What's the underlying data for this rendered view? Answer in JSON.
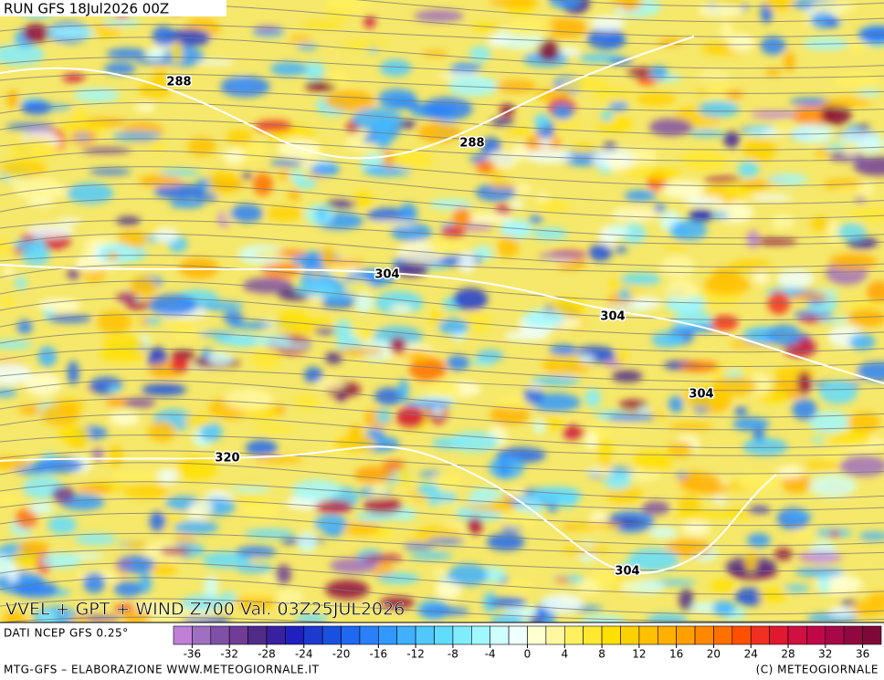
{
  "header": {
    "title": "RUN GFS 18Jul2026 00Z",
    "product": "VVEL + GPT + WIND Z700 Val. 03Z25JUL2026"
  },
  "map": {
    "contour_labels": [
      288,
      288,
      304,
      304,
      304,
      320,
      304
    ]
  },
  "legend": {
    "source": "DATI NCEP GFS 0.25°",
    "ticks": [
      -36,
      -32,
      -28,
      -24,
      -20,
      -16,
      -12,
      -8,
      -4,
      0,
      4,
      8,
      12,
      16,
      20,
      24,
      28,
      32,
      36
    ],
    "colors": [
      "#c080d8",
      "#a070c0",
      "#8050a8",
      "#703c98",
      "#502c88",
      "#3820a0",
      "#2020c0",
      "#1c3ad0",
      "#1a50e0",
      "#2068f0",
      "#2a80f8",
      "#3098ff",
      "#40b0ff",
      "#50c8ff",
      "#60dcff",
      "#80ecff",
      "#a0f8ff",
      "#d0ffff",
      "#f0ffff",
      "#ffffd0",
      "#fff8a0",
      "#fff060",
      "#ffe830",
      "#ffe000",
      "#ffd000",
      "#ffc000",
      "#ffb000",
      "#ffa000",
      "#ff8800",
      "#ff7000",
      "#ff5000",
      "#f03020",
      "#e01830",
      "#d01040",
      "#c00848",
      "#a80848",
      "#900840",
      "#800838"
    ]
  },
  "footer": {
    "credit": "MTG-GFS – ELABORAZIONE WWW.METEOGIORNALE.IT",
    "copyright": "(C) METEOGIORNALE"
  }
}
